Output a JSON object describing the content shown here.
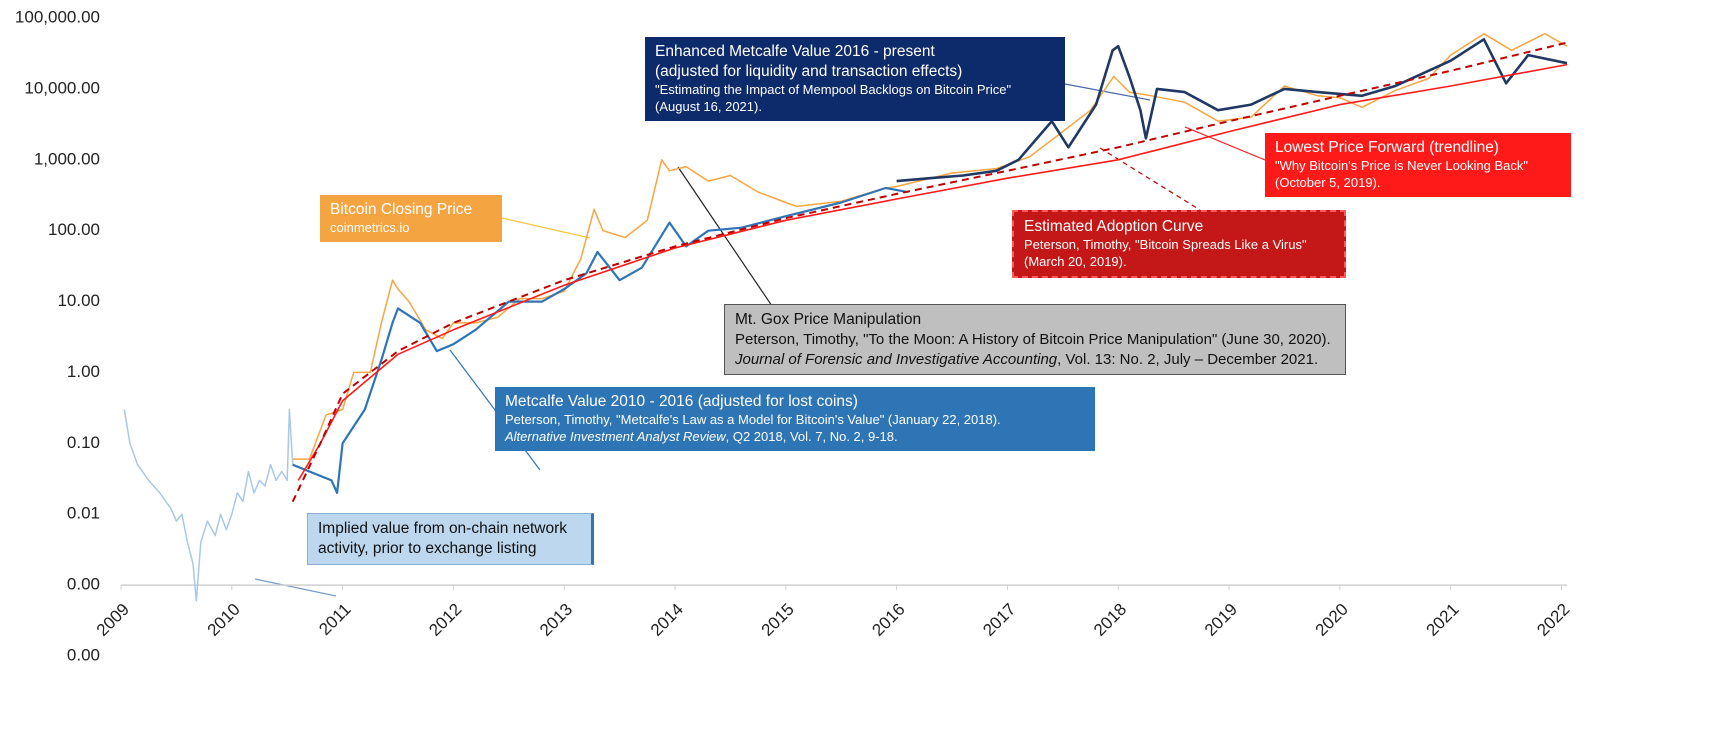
{
  "chart_data": {
    "type": "line",
    "log_scale": true,
    "xlim": [
      2009,
      2022.05
    ],
    "xticks": [
      2009,
      2010,
      2011,
      2012,
      2013,
      2014,
      2015,
      2016,
      2017,
      2018,
      2019,
      2020,
      2021,
      2022
    ],
    "ylim": [
      0.0001,
      100000
    ],
    "yticks": [
      {
        "value": 100000,
        "label": "100,000.00"
      },
      {
        "value": 10000,
        "label": "10,000.00"
      },
      {
        "value": 1000,
        "label": "1,000.00"
      },
      {
        "value": 100,
        "label": "100.00"
      },
      {
        "value": 10,
        "label": "10.00"
      },
      {
        "value": 1,
        "label": "1.00"
      },
      {
        "value": 0.1,
        "label": "0.10"
      },
      {
        "value": 0.01,
        "label": "0.01"
      },
      {
        "value": 0.001,
        "label": "0.00"
      },
      {
        "value": 0.0001,
        "label": "0.00"
      }
    ],
    "xaxis_crosses": 0.001,
    "series": [
      {
        "name": "Implied value from on-chain network activity, prior to exchange listing",
        "color": "#a9c8e8",
        "x": [
          2009.03,
          2009.08,
          2009.15,
          2009.25,
          2009.35,
          2009.45,
          2009.5,
          2009.55,
          2009.6,
          2009.65,
          2009.68,
          2009.72,
          2009.78,
          2009.85,
          2009.9,
          2009.95,
          2010.0,
          2010.05,
          2010.1,
          2010.15,
          2010.2,
          2010.25,
          2010.3,
          2010.35,
          2010.4,
          2010.45,
          2010.5,
          2010.52,
          2010.55
        ],
        "values": [
          0.3,
          0.1,
          0.05,
          0.03,
          0.02,
          0.012,
          0.008,
          0.01,
          0.004,
          0.002,
          0.0006,
          0.004,
          0.008,
          0.005,
          0.01,
          0.006,
          0.01,
          0.02,
          0.015,
          0.04,
          0.02,
          0.03,
          0.025,
          0.05,
          0.03,
          0.04,
          0.03,
          0.3,
          0.05
        ],
        "notes": []
      },
      {
        "name": "Bitcoin Closing Price",
        "color": "#f7a541",
        "x": [
          2010.55,
          2010.7,
          2010.85,
          2011.0,
          2011.1,
          2011.25,
          2011.35,
          2011.45,
          2011.5,
          2011.6,
          2011.75,
          2011.9,
          2012.0,
          2012.2,
          2012.4,
          2012.6,
          2012.8,
          2013.0,
          2013.15,
          2013.27,
          2013.35,
          2013.55,
          2013.75,
          2013.88,
          2013.95,
          2014.1,
          2014.3,
          2014.5,
          2014.75,
          2015.0,
          2015.1,
          2015.5,
          2015.9,
          2016.0,
          2016.5,
          2016.9,
          2017.2,
          2017.5,
          2017.75,
          2017.96,
          2018.1,
          2018.3,
          2018.6,
          2018.9,
          2019.2,
          2019.5,
          2019.8,
          2020.0,
          2020.2,
          2020.5,
          2020.8,
          2021.0,
          2021.3,
          2021.55,
          2021.85,
          2022.05
        ],
        "values": [
          0.06,
          0.06,
          0.25,
          0.3,
          1,
          1,
          5,
          20,
          15,
          10,
          4,
          3,
          5,
          5,
          6,
          11,
          11,
          14,
          40,
          200,
          100,
          80,
          140,
          1000,
          700,
          800,
          500,
          600,
          350,
          250,
          220,
          260,
          400,
          420,
          650,
          750,
          1100,
          2500,
          5000,
          15000,
          9000,
          8000,
          6500,
          3500,
          4000,
          11000,
          8000,
          7500,
          5500,
          9500,
          14000,
          30000,
          60000,
          35000,
          60000,
          40000
        ],
        "notes": [
          "coinmetrics.io"
        ]
      },
      {
        "name": "Metcalfe Value 2010 - 2016  (adjusted for lost coins)",
        "color": "#2e75b6",
        "x": [
          2010.55,
          2010.7,
          2010.9,
          2010.95,
          2011.0,
          2011.2,
          2011.35,
          2011.45,
          2011.5,
          2011.7,
          2011.85,
          2012.0,
          2012.2,
          2012.5,
          2012.8,
          2013.0,
          2013.2,
          2013.3,
          2013.5,
          2013.7,
          2013.95,
          2014.1,
          2014.3,
          2014.6,
          2015.0,
          2015.5,
          2015.9,
          2016.1
        ],
        "values": [
          0.05,
          0.04,
          0.03,
          0.02,
          0.1,
          0.3,
          1.5,
          5,
          8,
          5,
          2,
          2.5,
          4,
          10,
          10,
          15,
          25,
          50,
          20,
          30,
          130,
          60,
          100,
          110,
          160,
          250,
          400,
          350
        ],
        "notes": [
          "Peterson, Timothy, \"Metcalfe's Law as a Model for Bitcoin's Value\" (January 22, 2018).",
          [
            {
              "text": "Alternative Investment Analyst Review",
              "italic": true
            },
            {
              "text": ", Q2 2018, Vol. 7, No. 2, 9-18."
            }
          ]
        ]
      },
      {
        "name": "Enhanced Metcalfe Value 2016 - present",
        "color": "#1f3864",
        "x": [
          2016.0,
          2016.3,
          2016.6,
          2016.9,
          2017.1,
          2017.4,
          2017.55,
          2017.8,
          2017.95,
          2018.0,
          2018.1,
          2018.2,
          2018.25,
          2018.35,
          2018.6,
          2018.9,
          2019.2,
          2019.5,
          2019.8,
          2020.2,
          2020.5,
          2020.8,
          2021.0,
          2021.3,
          2021.5,
          2021.7,
          2022.05
        ],
        "values": [
          500,
          550,
          600,
          700,
          1000,
          3500,
          1500,
          6000,
          35000,
          40000,
          15000,
          5000,
          2000,
          10000,
          9000,
          5000,
          6000,
          10000,
          9000,
          8000,
          11000,
          18000,
          25000,
          50000,
          12000,
          30000,
          23000
        ],
        "notes": [
          "(adjusted for liquidity and transaction effects)",
          "\"Estimating the Impact of Mempool Backlogs on Bitcoin Price\"",
          "(August 16, 2021)."
        ]
      },
      {
        "name": "Lowest Price Forward (trendline)",
        "color": "#ff1a1a",
        "x": [
          2010.6,
          2010.8,
          2011.0,
          2011.5,
          2012.0,
          2013.0,
          2014.0,
          2015.0,
          2016.0,
          2017.0,
          2018.0,
          2019.0,
          2020.0,
          2021.0,
          2022.05
        ],
        "values": [
          0.03,
          0.1,
          0.4,
          1.8,
          4,
          17,
          57,
          140,
          280,
          550,
          1000,
          2500,
          6000,
          11000,
          22000
        ],
        "notes": [
          "\"Why Bitcoin's Price is Never Looking Back\"",
          "(October 5, 2019)."
        ]
      },
      {
        "name": "Estimated Adoption Curve",
        "color": "#c00000",
        "dash": true,
        "x": [
          2010.55,
          2010.8,
          2011.0,
          2011.5,
          2012.0,
          2013.0,
          2014.0,
          2015.0,
          2016.0,
          2017.0,
          2018.0,
          2019.0,
          2020.0,
          2021.0,
          2022.05
        ],
        "values": [
          0.015,
          0.1,
          0.5,
          2,
          5,
          20,
          60,
          150,
          330,
          700,
          1500,
          3500,
          8000,
          18000,
          45000
        ],
        "notes": [
          "Peterson, Timothy, \"Bitcoin Spreads Like a Virus\"",
          "(March 20, 2019)."
        ]
      }
    ],
    "annotations": [
      {
        "title": "Mt. Gox Price Manipulation",
        "notes": [
          "Peterson, Timothy, \"To the Moon: A History of Bitcoin Price Manipulation\" (June 30, 2020).",
          [
            {
              "text": "Journal of Forensic and Investigative Accounting",
              "italic": true
            },
            {
              "text": ", Vol. 13: No. 2, July – December 2021."
            }
          ]
        ]
      }
    ]
  }
}
